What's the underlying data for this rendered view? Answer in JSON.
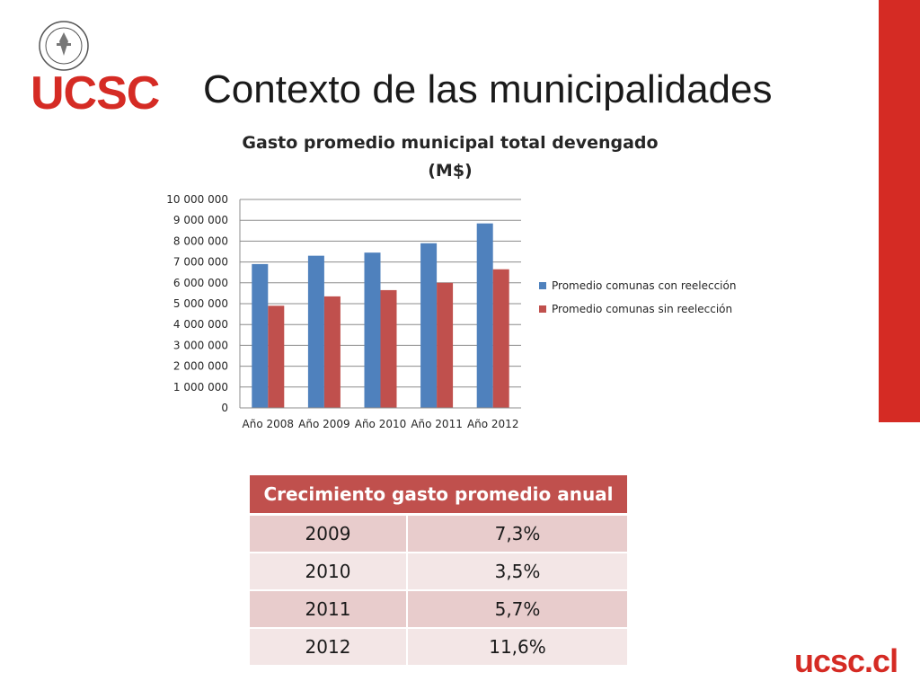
{
  "slide": {
    "title": "Contexto de las municipalidades",
    "logo_text": "UCSC",
    "footer_logo_text": "ucsc.cl"
  },
  "colors": {
    "brand_red": "#d52b24",
    "series_1": "#4f81bd",
    "series_2": "#c0504d",
    "table_header": "#c0504d",
    "table_row_dark": "#e8cccc",
    "table_row_light": "#f3e6e6"
  },
  "icons": {
    "seal": "university-seal-icon"
  },
  "chart_data": {
    "type": "bar",
    "title": "Gasto promedio municipal total devengado (M$)",
    "title_lines": [
      "Gasto promedio municipal total devengado",
      "(M$)"
    ],
    "categories": [
      "Año 2008",
      "Año 2009",
      "Año 2010",
      "Año 2011",
      "Año 2012"
    ],
    "series": [
      {
        "name": "Promedio comunas con reelección",
        "values": [
          6900000,
          7300000,
          7450000,
          7900000,
          8850000
        ]
      },
      {
        "name": "Promedio comunas sin reelección",
        "values": [
          4900000,
          5350000,
          5650000,
          6000000,
          6650000
        ]
      }
    ],
    "ylim": [
      0,
      10000000
    ],
    "yticks": [
      0,
      1000000,
      2000000,
      3000000,
      4000000,
      5000000,
      6000000,
      7000000,
      8000000,
      9000000,
      10000000
    ],
    "ytick_labels": [
      "0",
      "1 000 000",
      "2 000 000",
      "3 000 000",
      "4 000 000",
      "5 000 000",
      "6 000 000",
      "7 000 000",
      "8 000 000",
      "9 000 000",
      "10 000 000"
    ],
    "grid": true,
    "legend_position": "right"
  },
  "table": {
    "header": "Crecimiento gasto promedio anual",
    "rows": [
      {
        "year": "2009",
        "value": "7,3%"
      },
      {
        "year": "2010",
        "value": "3,5%"
      },
      {
        "year": "2011",
        "value": "5,7%"
      },
      {
        "year": "2012",
        "value": "11,6%"
      }
    ]
  }
}
